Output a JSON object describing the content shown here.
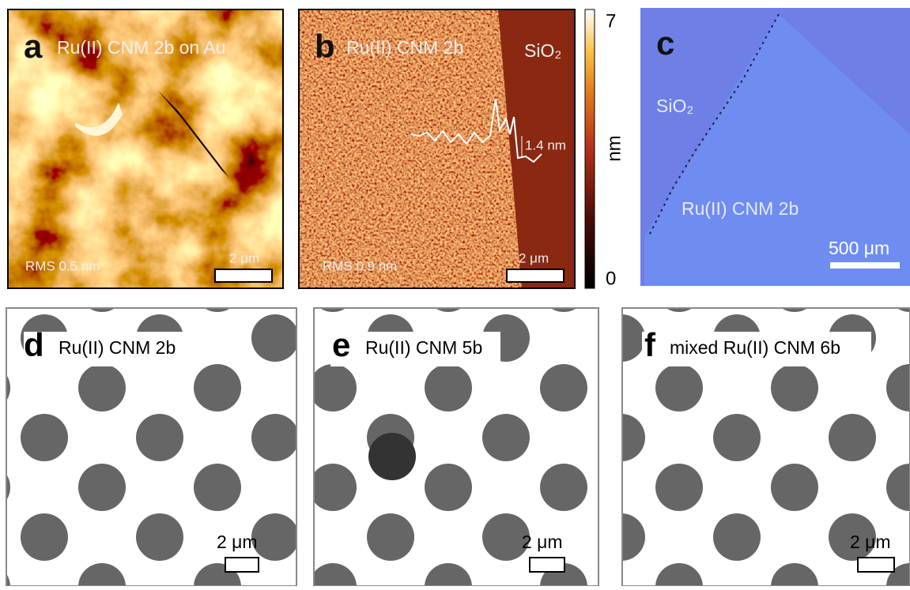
{
  "panels": [
    {
      "letter": "a",
      "label": "Ru(II) CNM 2b on Au",
      "rms": "RMS 0.5 nm",
      "scale_bar": "2 μm"
    },
    {
      "letter": "b",
      "label": "Ru(II) CNM 2b",
      "region": "SiO₂",
      "rms": "RMS 0.9 nm",
      "scale_bar": "2 μm",
      "profile_step": "1.4 nm"
    },
    {
      "letter": "c",
      "region": "SiO₂",
      "label": "Ru(II) CNM 2b",
      "scale_bar": "500 μm"
    },
    {
      "letter": "d",
      "label": "Ru(II) CNM 2b",
      "scale_bar": "2 μm"
    },
    {
      "letter": "e",
      "label": "Ru(II) CNM 5b",
      "scale_bar": "2 μm"
    },
    {
      "letter": "f",
      "label": "mixed Ru(II) CNM 6b",
      "scale_bar": "2 μm"
    }
  ],
  "colorbar": {
    "max": "7",
    "min": "0",
    "unit": "nm"
  }
}
